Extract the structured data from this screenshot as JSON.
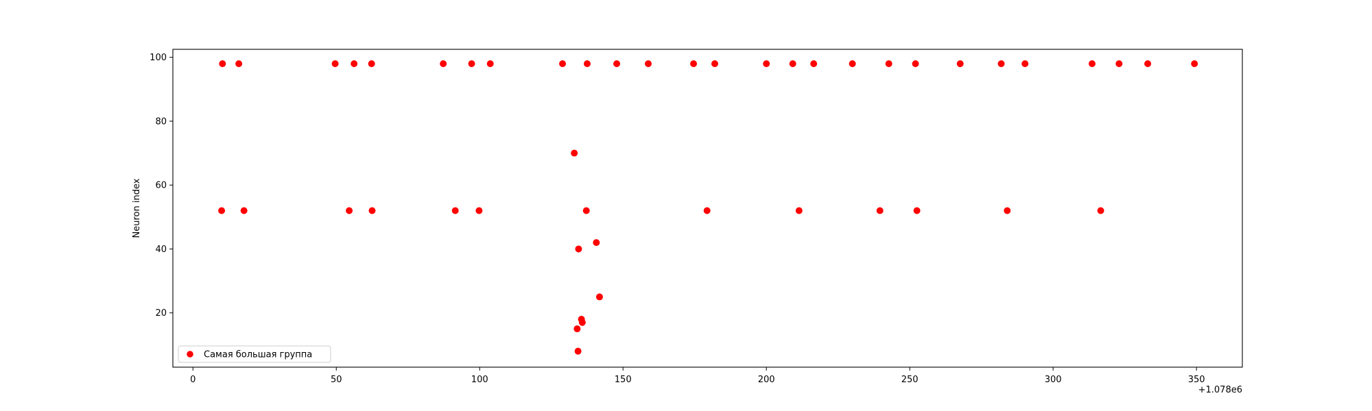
{
  "chart_data": {
    "type": "scatter",
    "title": "",
    "xlabel": "",
    "ylabel": "Neuron index",
    "x_offset_label": "+1.078e6",
    "xlim": [
      -7,
      366
    ],
    "ylim": [
      3,
      102.5
    ],
    "x_ticks": [
      0,
      50,
      100,
      150,
      200,
      250,
      300,
      350
    ],
    "y_ticks": [
      20,
      40,
      60,
      80,
      100
    ],
    "grid": false,
    "legend_position": "lower-left",
    "marker_color": "#ff0000",
    "series": [
      {
        "name": "Самая большая группа",
        "points": [
          [
            10.3,
            98
          ],
          [
            16.0,
            98
          ],
          [
            49.6,
            98
          ],
          [
            56.2,
            98
          ],
          [
            62.3,
            98
          ],
          [
            87.3,
            98
          ],
          [
            97.2,
            98
          ],
          [
            103.7,
            98
          ],
          [
            128.9,
            98
          ],
          [
            137.5,
            98
          ],
          [
            147.8,
            98
          ],
          [
            158.8,
            98
          ],
          [
            174.6,
            98
          ],
          [
            182.0,
            98
          ],
          [
            200.0,
            98
          ],
          [
            209.2,
            98
          ],
          [
            216.5,
            98
          ],
          [
            230.0,
            98
          ],
          [
            242.7,
            98
          ],
          [
            252.0,
            98
          ],
          [
            267.6,
            98
          ],
          [
            281.9,
            98
          ],
          [
            290.2,
            98
          ],
          [
            313.6,
            98
          ],
          [
            323.0,
            98
          ],
          [
            333.0,
            98
          ],
          [
            349.3,
            98
          ],
          [
            10.0,
            52
          ],
          [
            17.8,
            52
          ],
          [
            54.5,
            52
          ],
          [
            62.5,
            52
          ],
          [
            91.5,
            52
          ],
          [
            99.8,
            52
          ],
          [
            137.2,
            52
          ],
          [
            179.3,
            52
          ],
          [
            211.4,
            52
          ],
          [
            239.6,
            52
          ],
          [
            252.5,
            52
          ],
          [
            284.0,
            52
          ],
          [
            316.6,
            52
          ],
          [
            133.0,
            70
          ],
          [
            140.7,
            42
          ],
          [
            134.5,
            40
          ],
          [
            141.8,
            25
          ],
          [
            135.5,
            18
          ],
          [
            135.8,
            17
          ],
          [
            134.0,
            15
          ],
          [
            134.3,
            8
          ]
        ]
      }
    ]
  }
}
